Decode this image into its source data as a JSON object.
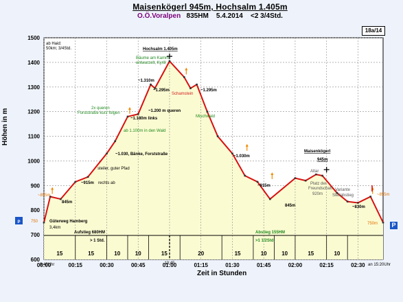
{
  "header": {
    "title": "Maisenkögerl 945m, Hochsalm 1.405m",
    "region": "O.Ö.Voralpen",
    "ascent": "835HM",
    "date": "5.4.2014",
    "duration": "<2 3/4Std.",
    "badge": "18a/14"
  },
  "chart_data": {
    "type": "area",
    "xlabel": "Zeit in Stunden",
    "ylabel": "Höhen in m",
    "ylim": [
      600,
      1500
    ],
    "yticks": [
      600,
      700,
      800,
      900,
      1000,
      1100,
      1200,
      1300,
      1400,
      1500
    ],
    "xlim": [
      "00:00",
      "02:42"
    ],
    "xticks": [
      "00:00",
      "00:15",
      "00:30",
      "00:45",
      "01:00",
      "01:15",
      "01:30",
      "01:45",
      "02:00",
      "02:15",
      "02:30"
    ],
    "grid": true,
    "profile": {
      "time": [
        "00:00",
        "00:03",
        "00:08",
        "00:15",
        "00:21",
        "00:30",
        "00:34",
        "00:40",
        "00:45",
        "00:51",
        "00:53",
        "01:00",
        "01:07",
        "01:10",
        "01:13",
        "01:18",
        "01:23",
        "01:30",
        "01:36",
        "01:42",
        "01:48",
        "02:00",
        "02:05",
        "02:10",
        "02:13",
        "02:20",
        "02:25",
        "02:30",
        "02:36",
        "02:42"
      ],
      "elevation": [
        750,
        855,
        845,
        915,
        935,
        1030,
        1080,
        1180,
        1190,
        1310,
        1295,
        1405,
        1340,
        1295,
        1310,
        1200,
        1100,
        1030,
        940,
        915,
        845,
        930,
        920,
        945,
        940,
        870,
        835,
        830,
        855,
        750
      ]
    },
    "segments": [
      15,
      15,
      10,
      10,
      15,
      20,
      15,
      10,
      10,
      15,
      10
    ],
    "time_labels": {
      "start": "8:40Uhr",
      "summit": "13:45",
      "end": "an 15:20Uhr"
    },
    "section_labels": {
      "ascent": [
        "Aufstieg 680HM",
        "> 1 Std."
      ],
      "descent": [
        "Abstieg 155HM",
        ">1 1/2Std."
      ]
    },
    "summits": [
      {
        "name": "Hochsalm 1.405m",
        "time": "01:00",
        "elevation": 1405
      },
      {
        "name": "Maisenkögerl",
        "name2": "945m",
        "time": "02:15",
        "elevation": 945
      }
    ],
    "annotations": [
      {
        "text": "ab Haid:",
        "color": "#000000"
      },
      {
        "text": "50km; 3/4Std.",
        "color": "#000000"
      },
      {
        "text": "Güterweg Hamberg",
        "color": "#000000",
        "bold": true
      },
      {
        "text": "3,4km",
        "color": "#000000"
      },
      {
        "text": "~855m",
        "color": "#e07000"
      },
      {
        "text": "845m",
        "color": "#000000",
        "bold": true
      },
      {
        "text": "~915m",
        "color": "#000000",
        "bold": true
      },
      {
        "text": "rechts ab",
        "color": "#000000"
      },
      {
        "text": "steiler, guter Pfad",
        "color": "#000000"
      },
      {
        "text": "~1.030, Bänke, Forststraße",
        "color": "#000000",
        "bold": true
      },
      {
        "text": "ab 1.100m in den Wald",
        "color": "#1f8a1f"
      },
      {
        "text": "2x queren",
        "color": "#1f8a1f"
      },
      {
        "text": "Forststraße kurz folgen",
        "color": "#1f8a1f"
      },
      {
        "text": "~1.180m links",
        "color": "#000000",
        "bold": true
      },
      {
        "text": "~1.200 m queren",
        "color": "#000000",
        "bold": true
      },
      {
        "text": "~1.310m",
        "color": "#000000",
        "bold": true
      },
      {
        "text": "~1.295m",
        "color": "#000000",
        "bold": true
      },
      {
        "text": "Schamstein",
        "color": "#d02020"
      },
      {
        "text": "Bäume am Kamm",
        "color": "#1f8a1f"
      },
      {
        "text": "entwurzelt, Kyrill",
        "color": "#1f8a1f"
      },
      {
        "text": "~1.295m",
        "color": "#000000",
        "bold": true
      },
      {
        "text": "Mischwald",
        "color": "#1f8a1f"
      },
      {
        "text": "~1.030m",
        "color": "#000000",
        "bold": true
      },
      {
        "text": "~915m",
        "color": "#000000",
        "bold": true
      },
      {
        "text": "845m",
        "color": "#000000",
        "bold": true
      },
      {
        "text": "Altar",
        "color": "#555555"
      },
      {
        "text": "Platz der",
        "color": "#555555"
      },
      {
        "text": "Freundschaft",
        "color": "#555555"
      },
      {
        "text": "920m",
        "color": "#555555"
      },
      {
        "text": "Variante",
        "color": "#555555"
      },
      {
        "text": "Steilabstieg",
        "color": "#555555"
      },
      {
        "text": "~830m",
        "color": "#000000",
        "bold": true
      },
      {
        "text": "~855m",
        "color": "#e07000"
      },
      {
        "text": "750",
        "color": "#e07000"
      },
      {
        "text": "750m",
        "color": "#e07000"
      },
      {
        "text": "P",
        "color": "#1a56c8"
      }
    ],
    "colors": {
      "fill": "#fbfbd2",
      "line": "#d81010",
      "grid": "#000000",
      "pointer": "#f08a00",
      "green": "#1f8a1f",
      "parking": "#1a56c8"
    }
  }
}
